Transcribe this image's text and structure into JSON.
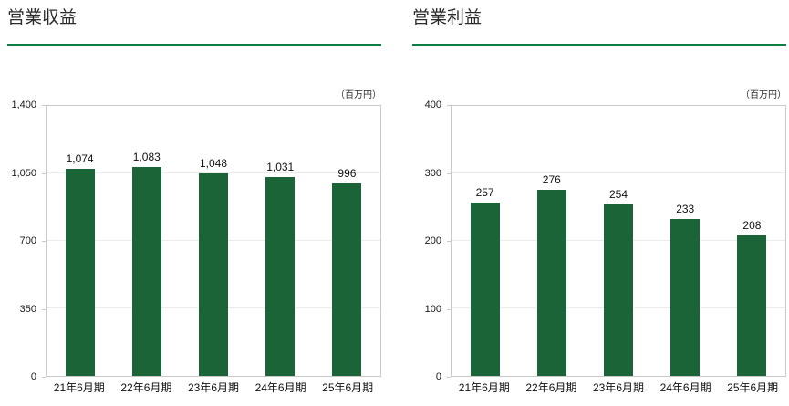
{
  "colors": {
    "bar_green": "#1a6438",
    "accent_green": "#0e7d44",
    "plot_border": "#c9c9c9",
    "gridline": "#ebebeb"
  },
  "chart_data": [
    {
      "type": "bar",
      "title": "営業収益",
      "unit": "（百万円）",
      "categories": [
        "21年6月期",
        "22年6月期",
        "23年6月期",
        "24年6月期",
        "25年6月期"
      ],
      "values": [
        1074,
        1083,
        1048,
        1031,
        996
      ],
      "value_labels": [
        "1,074",
        "1,083",
        "1,048",
        "1,031",
        "996"
      ],
      "ylim": [
        0,
        1400
      ],
      "yticks": [
        0,
        350,
        700,
        1050,
        1400
      ],
      "ytick_labels": [
        "0",
        "350",
        "700",
        "1,050",
        "1,400"
      ],
      "grid": true,
      "legend": null,
      "bar_color": "#1a6438"
    },
    {
      "type": "bar",
      "title": "営業利益",
      "unit": "（百万円）",
      "categories": [
        "21年6月期",
        "22年6月期",
        "23年6月期",
        "24年6月期",
        "25年6月期"
      ],
      "values": [
        257,
        276,
        254,
        233,
        208
      ],
      "value_labels": [
        "257",
        "276",
        "254",
        "233",
        "208"
      ],
      "ylim": [
        0,
        400
      ],
      "yticks": [
        0,
        100,
        200,
        300,
        400
      ],
      "ytick_labels": [
        "0",
        "100",
        "200",
        "300",
        "400"
      ],
      "grid": true,
      "legend": null,
      "bar_color": "#1a6438"
    }
  ]
}
